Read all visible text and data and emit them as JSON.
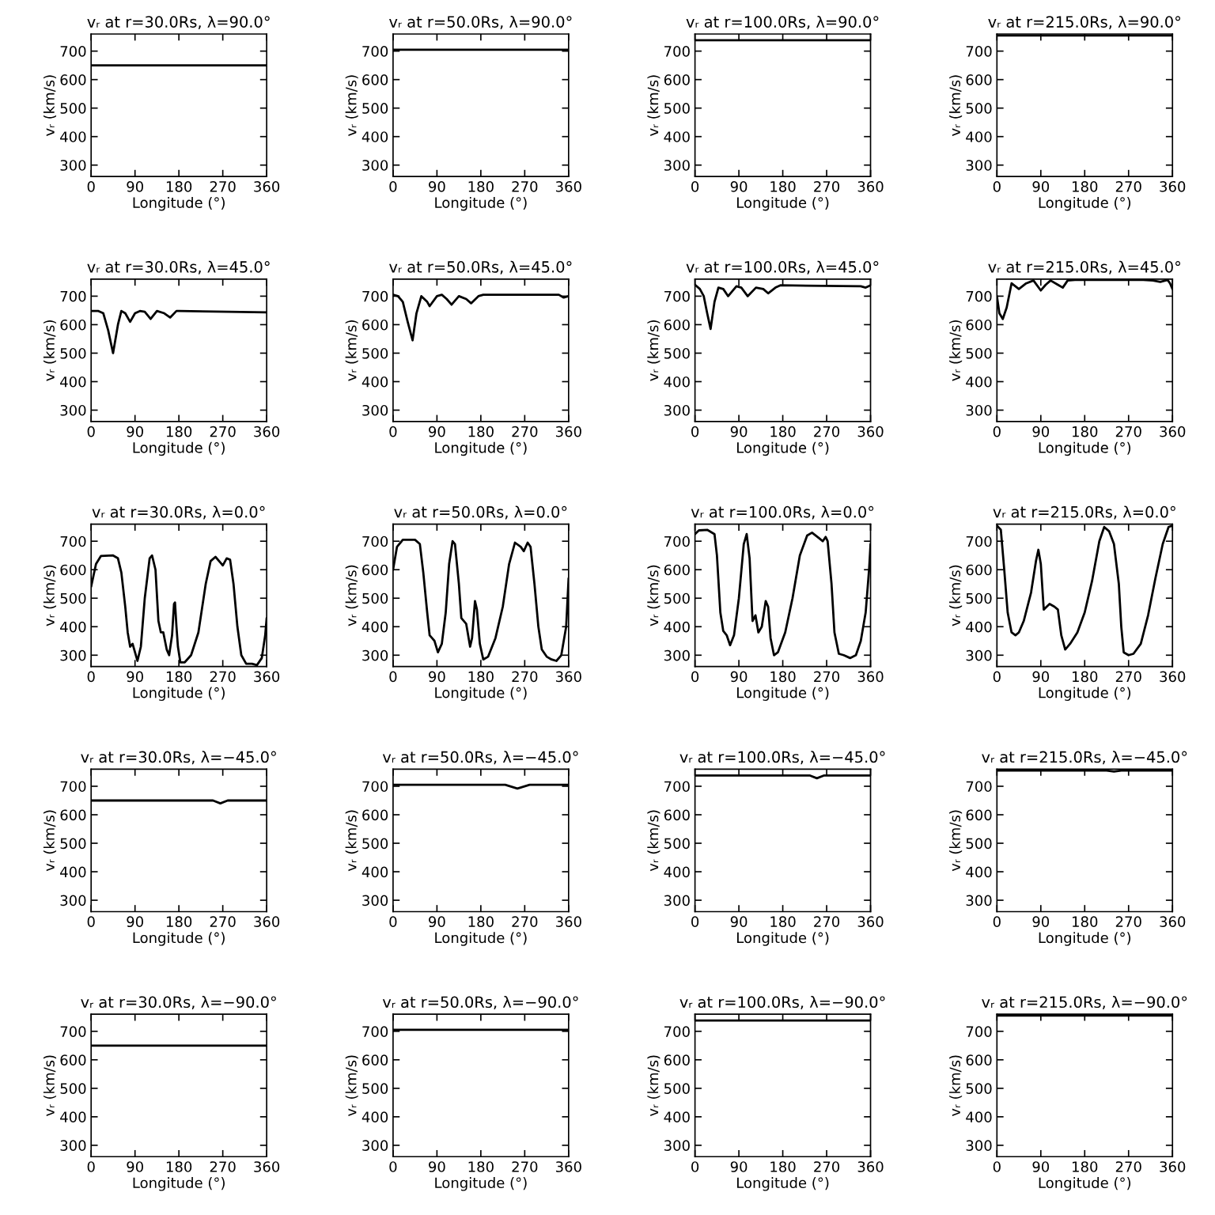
{
  "chart_data": [
    {
      "type": "line",
      "title": "vᵣ at r=30.0Rs, λ=90.0°",
      "xlabel": "Longitude (°)",
      "ylabel": "vᵣ (km/s)",
      "color": "#000000",
      "x": [
        0,
        360
      ],
      "values": [
        650,
        650
      ],
      "xlim": [
        0,
        360
      ],
      "ylim": [
        260,
        760
      ],
      "xticks": [
        0,
        90,
        180,
        270,
        360
      ],
      "yticks": [
        300,
        400,
        500,
        600,
        700
      ],
      "grid": false
    },
    {
      "type": "line",
      "title": "vᵣ at r=50.0Rs, λ=90.0°",
      "xlabel": "Longitude (°)",
      "ylabel": "vᵣ (km/s)",
      "color": "#000000",
      "x": [
        0,
        360
      ],
      "values": [
        705,
        705
      ],
      "xlim": [
        0,
        360
      ],
      "ylim": [
        260,
        760
      ],
      "xticks": [
        0,
        90,
        180,
        270,
        360
      ],
      "yticks": [
        300,
        400,
        500,
        600,
        700
      ],
      "grid": false
    },
    {
      "type": "line",
      "title": "vᵣ at r=100.0Rs, λ=90.0°",
      "xlabel": "Longitude (°)",
      "ylabel": "vᵣ (km/s)",
      "color": "#000000",
      "x": [
        0,
        360
      ],
      "values": [
        738,
        738
      ],
      "xlim": [
        0,
        360
      ],
      "ylim": [
        260,
        760
      ],
      "xticks": [
        0,
        90,
        180,
        270,
        360
      ],
      "yticks": [
        300,
        400,
        500,
        600,
        700
      ],
      "grid": false
    },
    {
      "type": "line",
      "title": "vᵣ at r=215.0Rs, λ=90.0°",
      "xlabel": "Longitude (°)",
      "ylabel": "vᵣ (km/s)",
      "color": "#000000",
      "x": [
        0,
        360
      ],
      "values": [
        755,
        755
      ],
      "xlim": [
        0,
        360
      ],
      "ylim": [
        260,
        760
      ],
      "xticks": [
        0,
        90,
        180,
        270,
        360
      ],
      "yticks": [
        300,
        400,
        500,
        600,
        700
      ],
      "grid": false
    },
    {
      "type": "line",
      "title": "vᵣ at r=30.0Rs, λ=45.0°",
      "xlabel": "Longitude (°)",
      "ylabel": "vᵣ (km/s)",
      "color": "#000000",
      "x": [
        0,
        15,
        25,
        35,
        45,
        55,
        62,
        70,
        80,
        90,
        100,
        110,
        122,
        135,
        150,
        162,
        175,
        180,
        360
      ],
      "values": [
        648,
        648,
        640,
        580,
        500,
        600,
        648,
        640,
        610,
        640,
        648,
        645,
        620,
        648,
        640,
        625,
        648,
        648,
        643
      ],
      "xlim": [
        0,
        360
      ],
      "ylim": [
        260,
        760
      ],
      "xticks": [
        0,
        90,
        180,
        270,
        360
      ],
      "yticks": [
        300,
        400,
        500,
        600,
        700
      ],
      "grid": false
    },
    {
      "type": "line",
      "title": "vᵣ at r=50.0Rs, λ=45.0°",
      "xlabel": "Longitude (°)",
      "ylabel": "vᵣ (km/s)",
      "color": "#000000",
      "x": [
        0,
        10,
        20,
        30,
        40,
        48,
        58,
        70,
        75,
        90,
        100,
        110,
        120,
        135,
        150,
        160,
        175,
        185,
        340,
        350,
        360
      ],
      "values": [
        705,
        700,
        680,
        610,
        545,
        640,
        700,
        680,
        665,
        700,
        705,
        690,
        670,
        700,
        690,
        675,
        700,
        705,
        705,
        695,
        700
      ],
      "xlim": [
        0,
        360
      ],
      "ylim": [
        260,
        760
      ],
      "xticks": [
        0,
        90,
        180,
        270,
        360
      ],
      "yticks": [
        300,
        400,
        500,
        600,
        700
      ],
      "grid": false
    },
    {
      "type": "line",
      "title": "vᵣ at r=100.0Rs, λ=45.0°",
      "xlabel": "Longitude (°)",
      "ylabel": "vᵣ (km/s)",
      "color": "#000000",
      "x": [
        0,
        10,
        18,
        25,
        32,
        40,
        48,
        58,
        68,
        85,
        95,
        108,
        125,
        140,
        150,
        165,
        175,
        340,
        350,
        360
      ],
      "values": [
        740,
        725,
        700,
        640,
        585,
        680,
        730,
        725,
        700,
        735,
        730,
        700,
        730,
        725,
        710,
        730,
        738,
        735,
        730,
        738
      ],
      "xlim": [
        0,
        360
      ],
      "ylim": [
        260,
        760
      ],
      "xticks": [
        0,
        90,
        180,
        270,
        360
      ],
      "yticks": [
        300,
        400,
        500,
        600,
        700
      ],
      "grid": false
    },
    {
      "type": "line",
      "title": "vᵣ at r=215.0Rs, λ=45.0°",
      "xlabel": "Longitude (°)",
      "ylabel": "vᵣ (km/s)",
      "color": "#000000",
      "x": [
        0,
        5,
        12,
        20,
        30,
        45,
        60,
        75,
        90,
        100,
        110,
        125,
        135,
        145,
        160,
        300,
        320,
        335,
        350,
        355,
        360
      ],
      "values": [
        700,
        640,
        620,
        660,
        745,
        725,
        745,
        755,
        720,
        740,
        755,
        740,
        730,
        755,
        757,
        757,
        755,
        750,
        757,
        745,
        725
      ],
      "xlim": [
        0,
        360
      ],
      "ylim": [
        260,
        760
      ],
      "xticks": [
        0,
        90,
        180,
        270,
        360
      ],
      "yticks": [
        300,
        400,
        500,
        600,
        700
      ],
      "grid": false
    },
    {
      "type": "line",
      "title": "vᵣ at r=30.0Rs, λ=0.0°",
      "xlabel": "Longitude (°)",
      "ylabel": "vᵣ (km/s)",
      "color": "#000000",
      "x": [
        0,
        10,
        20,
        45,
        55,
        62,
        70,
        75,
        80,
        85,
        90,
        95,
        102,
        110,
        120,
        125,
        132,
        138,
        143,
        148,
        155,
        160,
        166,
        170,
        172,
        175,
        178,
        183,
        192,
        205,
        220,
        235,
        245,
        255,
        265,
        270,
        278,
        285,
        292,
        300,
        308,
        318,
        330,
        340,
        350,
        357,
        360
      ],
      "values": [
        540,
        620,
        648,
        650,
        640,
        590,
        470,
        380,
        330,
        340,
        310,
        280,
        330,
        500,
        640,
        650,
        600,
        420,
        380,
        380,
        320,
        300,
        370,
        480,
        485,
        400,
        330,
        275,
        275,
        300,
        380,
        550,
        630,
        645,
        625,
        615,
        640,
        635,
        550,
        400,
        300,
        270,
        270,
        265,
        290,
        370,
        430
      ],
      "xlim": [
        0,
        360
      ],
      "ylim": [
        260,
        760
      ],
      "xticks": [
        0,
        90,
        180,
        270,
        360
      ],
      "yticks": [
        300,
        400,
        500,
        600,
        700
      ],
      "grid": false
    },
    {
      "type": "line",
      "title": "vᵣ at r=50.0Rs, λ=0.0°",
      "xlabel": "Longitude (°)",
      "ylabel": "vᵣ (km/s)",
      "color": "#000000",
      "x": [
        0,
        8,
        20,
        45,
        55,
        62,
        70,
        75,
        80,
        85,
        92,
        100,
        108,
        115,
        122,
        127,
        135,
        140,
        150,
        158,
        162,
        168,
        172,
        178,
        185,
        195,
        210,
        225,
        238,
        250,
        262,
        268,
        276,
        282,
        290,
        298,
        305,
        315,
        325,
        335,
        345,
        355,
        360
      ],
      "values": [
        600,
        680,
        705,
        705,
        690,
        590,
        450,
        370,
        360,
        350,
        310,
        340,
        450,
        620,
        700,
        690,
        550,
        430,
        410,
        330,
        360,
        490,
        460,
        340,
        285,
        295,
        360,
        470,
        620,
        695,
        680,
        665,
        695,
        680,
        550,
        400,
        320,
        295,
        285,
        280,
        300,
        400,
        570
      ],
      "xlim": [
        0,
        360
      ],
      "ylim": [
        260,
        760
      ],
      "xticks": [
        0,
        90,
        180,
        270,
        360
      ],
      "yticks": [
        300,
        400,
        500,
        600,
        700
      ],
      "grid": false
    },
    {
      "type": "line",
      "title": "vᵣ at r=100.0Rs, λ=0.0°",
      "xlabel": "Longitude (°)",
      "ylabel": "vᵣ (km/s)",
      "color": "#000000",
      "x": [
        0,
        8,
        25,
        40,
        45,
        52,
        58,
        65,
        72,
        80,
        90,
        100,
        106,
        112,
        118,
        124,
        130,
        137,
        145,
        150,
        155,
        162,
        170,
        185,
        200,
        215,
        230,
        240,
        255,
        262,
        268,
        272,
        280,
        286,
        295,
        305,
        318,
        330,
        340,
        350,
        357,
        360
      ],
      "values": [
        725,
        738,
        740,
        725,
        650,
        450,
        385,
        370,
        335,
        370,
        500,
        690,
        725,
        640,
        420,
        440,
        380,
        400,
        490,
        470,
        360,
        300,
        310,
        380,
        500,
        650,
        720,
        730,
        710,
        700,
        715,
        700,
        550,
        380,
        305,
        300,
        290,
        300,
        350,
        450,
        600,
        690
      ],
      "xlim": [
        0,
        360
      ],
      "ylim": [
        260,
        760
      ],
      "xticks": [
        0,
        90,
        180,
        270,
        360
      ],
      "yticks": [
        300,
        400,
        500,
        600,
        700
      ],
      "grid": false
    },
    {
      "type": "line",
      "title": "vᵣ at r=215.0Rs, λ=0.0°",
      "xlabel": "Longitude (°)",
      "ylabel": "vᵣ (km/s)",
      "color": "#000000",
      "x": [
        0,
        8,
        15,
        22,
        30,
        38,
        45,
        55,
        70,
        80,
        85,
        90,
        96,
        102,
        108,
        118,
        125,
        132,
        140,
        150,
        165,
        180,
        195,
        210,
        220,
        230,
        240,
        250,
        255,
        260,
        270,
        280,
        295,
        310,
        325,
        340,
        352,
        360
      ],
      "values": [
        755,
        740,
        600,
        450,
        380,
        370,
        380,
        420,
        520,
        630,
        670,
        620,
        460,
        470,
        480,
        470,
        460,
        370,
        320,
        340,
        380,
        450,
        560,
        700,
        750,
        735,
        690,
        550,
        400,
        310,
        300,
        305,
        340,
        440,
        570,
        690,
        750,
        755
      ],
      "xlim": [
        0,
        360
      ],
      "ylim": [
        260,
        760
      ],
      "xticks": [
        0,
        90,
        180,
        270,
        360
      ],
      "yticks": [
        300,
        400,
        500,
        600,
        700
      ],
      "grid": false
    },
    {
      "type": "line",
      "title": "vᵣ at r=30.0Rs, λ=−45.0°",
      "xlabel": "Longitude (°)",
      "ylabel": "vᵣ (km/s)",
      "color": "#000000",
      "x": [
        0,
        250,
        265,
        280,
        360
      ],
      "values": [
        650,
        650,
        640,
        650,
        650
      ],
      "xlim": [
        0,
        360
      ],
      "ylim": [
        260,
        760
      ],
      "xticks": [
        0,
        90,
        180,
        270,
        360
      ],
      "yticks": [
        300,
        400,
        500,
        600,
        700
      ],
      "grid": false
    },
    {
      "type": "line",
      "title": "vᵣ at r=50.0Rs, λ=−45.0°",
      "xlabel": "Longitude (°)",
      "ylabel": "vᵣ (km/s)",
      "color": "#000000",
      "x": [
        0,
        230,
        255,
        280,
        360
      ],
      "values": [
        705,
        705,
        692,
        705,
        705
      ],
      "xlim": [
        0,
        360
      ],
      "ylim": [
        260,
        760
      ],
      "xticks": [
        0,
        90,
        180,
        270,
        360
      ],
      "yticks": [
        300,
        400,
        500,
        600,
        700
      ],
      "grid": false
    },
    {
      "type": "line",
      "title": "vᵣ at r=100.0Rs, λ=−45.0°",
      "xlabel": "Longitude (°)",
      "ylabel": "vᵣ (km/s)",
      "color": "#000000",
      "x": [
        0,
        235,
        250,
        265,
        360
      ],
      "values": [
        738,
        738,
        728,
        738,
        738
      ],
      "xlim": [
        0,
        360
      ],
      "ylim": [
        260,
        760
      ],
      "xticks": [
        0,
        90,
        180,
        270,
        360
      ],
      "yticks": [
        300,
        400,
        500,
        600,
        700
      ],
      "grid": false
    },
    {
      "type": "line",
      "title": "vᵣ at r=215.0Rs, λ=−45.0°",
      "xlabel": "Longitude (°)",
      "ylabel": "vᵣ (km/s)",
      "color": "#000000",
      "x": [
        0,
        225,
        240,
        255,
        360
      ],
      "values": [
        755,
        755,
        752,
        755,
        755
      ],
      "xlim": [
        0,
        360
      ],
      "ylim": [
        260,
        760
      ],
      "xticks": [
        0,
        90,
        180,
        270,
        360
      ],
      "yticks": [
        300,
        400,
        500,
        600,
        700
      ],
      "grid": false
    },
    {
      "type": "line",
      "title": "vᵣ at r=30.0Rs, λ=−90.0°",
      "xlabel": "Longitude (°)",
      "ylabel": "vᵣ (km/s)",
      "color": "#000000",
      "x": [
        0,
        360
      ],
      "values": [
        650,
        650
      ],
      "xlim": [
        0,
        360
      ],
      "ylim": [
        260,
        760
      ],
      "xticks": [
        0,
        90,
        180,
        270,
        360
      ],
      "yticks": [
        300,
        400,
        500,
        600,
        700
      ],
      "grid": false
    },
    {
      "type": "line",
      "title": "vᵣ at r=50.0Rs, λ=−90.0°",
      "xlabel": "Longitude (°)",
      "ylabel": "vᵣ (km/s)",
      "color": "#000000",
      "x": [
        0,
        360
      ],
      "values": [
        705,
        705
      ],
      "xlim": [
        0,
        360
      ],
      "ylim": [
        260,
        760
      ],
      "xticks": [
        0,
        90,
        180,
        270,
        360
      ],
      "yticks": [
        300,
        400,
        500,
        600,
        700
      ],
      "grid": false
    },
    {
      "type": "line",
      "title": "vᵣ at r=100.0Rs, λ=−90.0°",
      "xlabel": "Longitude (°)",
      "ylabel": "vᵣ (km/s)",
      "color": "#000000",
      "x": [
        0,
        360
      ],
      "values": [
        738,
        738
      ],
      "xlim": [
        0,
        360
      ],
      "ylim": [
        260,
        760
      ],
      "xticks": [
        0,
        90,
        180,
        270,
        360
      ],
      "yticks": [
        300,
        400,
        500,
        600,
        700
      ],
      "grid": false
    },
    {
      "type": "line",
      "title": "vᵣ at r=215.0Rs, λ=−90.0°",
      "xlabel": "Longitude (°)",
      "ylabel": "vᵣ (km/s)",
      "color": "#000000",
      "x": [
        0,
        360
      ],
      "values": [
        755,
        755
      ],
      "xlim": [
        0,
        360
      ],
      "ylim": [
        260,
        760
      ],
      "xticks": [
        0,
        90,
        180,
        270,
        360
      ],
      "yticks": [
        300,
        400,
        500,
        600,
        700
      ],
      "grid": false
    }
  ]
}
